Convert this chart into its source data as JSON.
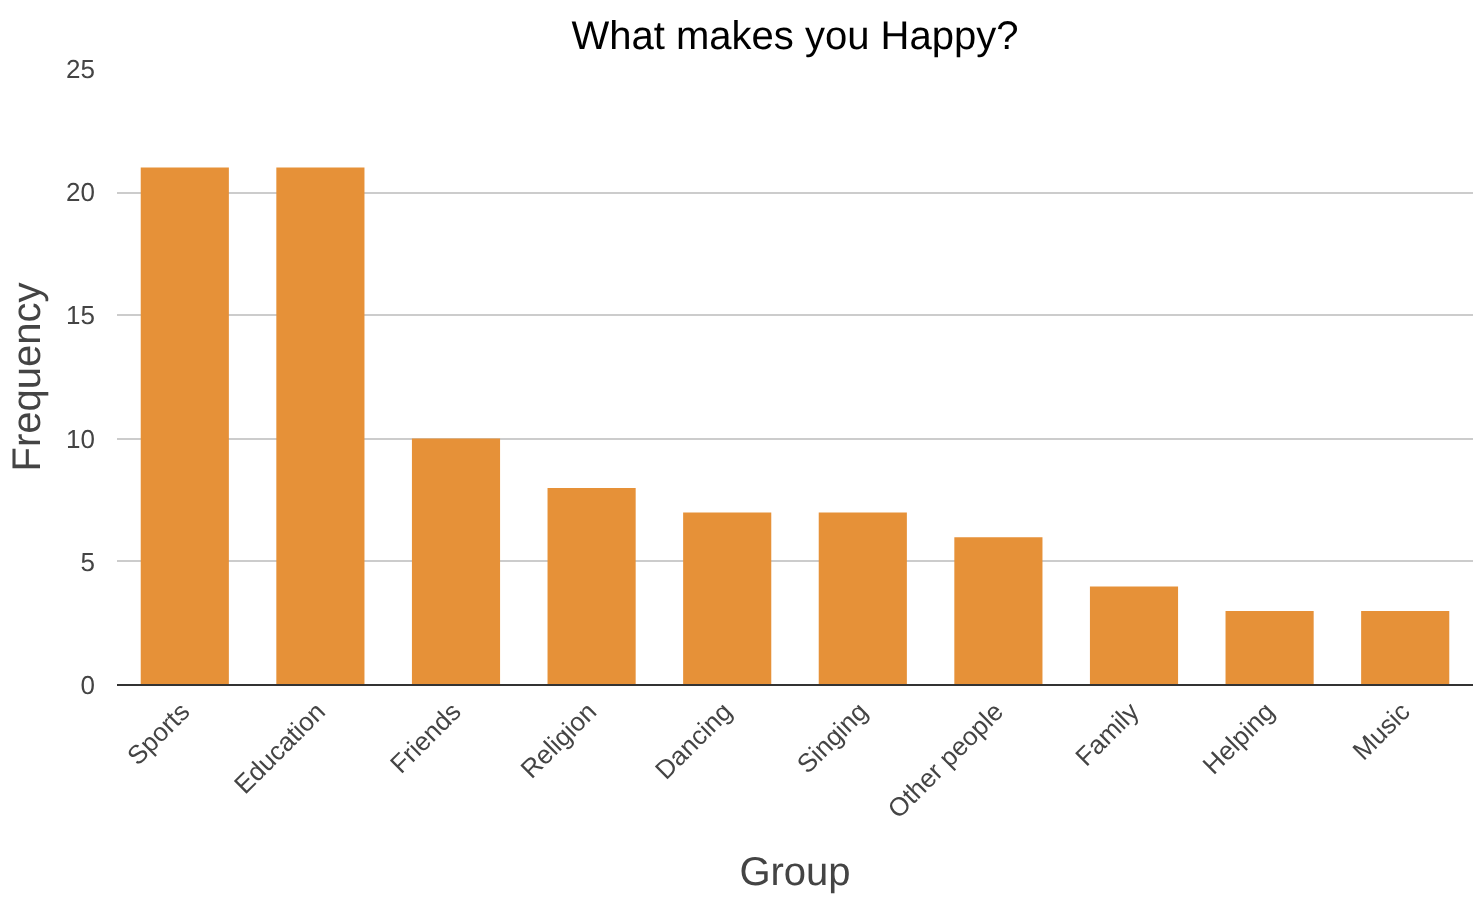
{
  "chart_data": {
    "type": "bar",
    "title": "What makes you Happy?",
    "xlabel": "Group",
    "ylabel": "Frequency",
    "categories": [
      "Sports",
      "Education",
      "Friends",
      "Religion",
      "Dancing",
      "Singing",
      "Other people",
      "Family",
      "Helping",
      "Music"
    ],
    "values": [
      21,
      21,
      10,
      8,
      7,
      7,
      6,
      4,
      3,
      3
    ],
    "color": "#e69138",
    "ylim": [
      0,
      25
    ],
    "yticks": [
      0,
      5,
      10,
      15,
      20,
      25
    ],
    "grid": "y"
  }
}
